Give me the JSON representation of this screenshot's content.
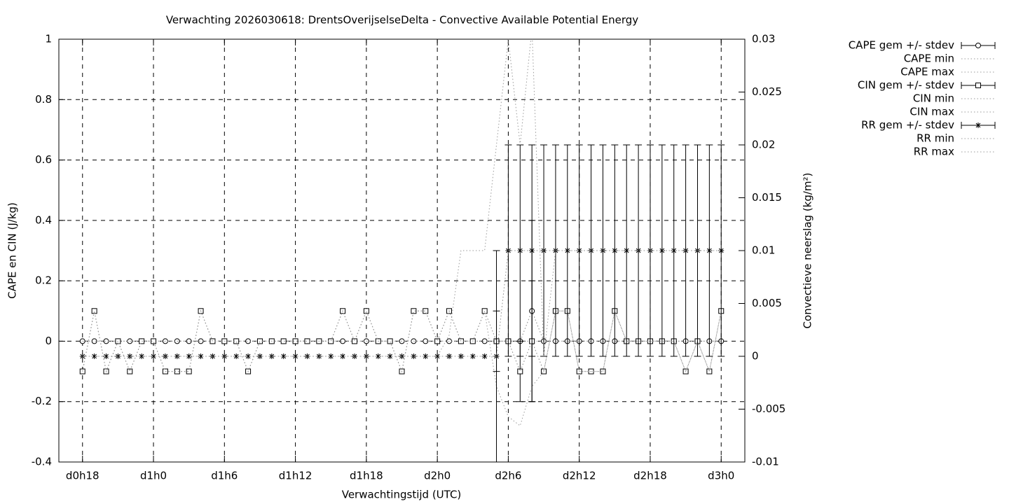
{
  "chart_data": {
    "type": "line",
    "title": "Verwachting 2026030618: DrentsOverijselseDelta - Convective Available Potential Energy",
    "xlabel": "Verwachtingstijd (UTC)",
    "ylabel": "CAPE en CIN (J/kg)",
    "y2label": "Convectieve neerslag (kg/m²)",
    "x": [
      0,
      1,
      2,
      3,
      4,
      5,
      6,
      7,
      8,
      9,
      10,
      11,
      12,
      13,
      14,
      15,
      16,
      17,
      18,
      19,
      20,
      21,
      22,
      23,
      24,
      25,
      26,
      27,
      28,
      29,
      30,
      31,
      32,
      33,
      34,
      35,
      36,
      37,
      38,
      39,
      40,
      41,
      42,
      43,
      44,
      45,
      46,
      47,
      48,
      49,
      50,
      51,
      52,
      53,
      54
    ],
    "xlim": [
      -2,
      56
    ],
    "xticks": [
      {
        "value": 0,
        "label": "d0h18"
      },
      {
        "value": 6,
        "label": "d1h0"
      },
      {
        "value": 12,
        "label": "d1h6"
      },
      {
        "value": 18,
        "label": "d1h12"
      },
      {
        "value": 24,
        "label": "d1h18"
      },
      {
        "value": 30,
        "label": "d2h0"
      },
      {
        "value": 36,
        "label": "d2h6"
      },
      {
        "value": 42,
        "label": "d2h12"
      },
      {
        "value": 48,
        "label": "d2h18"
      },
      {
        "value": 54,
        "label": "d3h0"
      }
    ],
    "ylim": [
      -0.4,
      1
    ],
    "yticks": [
      -0.4,
      -0.2,
      0,
      0.2,
      0.4,
      0.6,
      0.8,
      1
    ],
    "y2lim": [
      -0.01,
      0.03
    ],
    "y2ticks": [
      -0.01,
      -0.005,
      0,
      0.005,
      0.01,
      0.015,
      0.02,
      0.025,
      0.03
    ],
    "grid": true,
    "legend": "right",
    "series": [
      {
        "name": "CAPE gem +/- stdev",
        "color": "#000000",
        "marker": "circle",
        "style": "mean",
        "values": [
          0,
          0,
          0,
          0,
          0,
          0,
          0,
          0,
          0,
          0,
          0,
          0,
          0,
          0,
          0,
          0,
          0,
          0,
          0,
          0,
          0,
          0,
          0,
          0,
          0,
          0,
          0,
          0,
          0,
          0,
          0,
          0,
          0,
          0,
          0,
          0,
          0,
          0,
          0.1,
          0,
          0,
          0,
          0,
          0,
          0,
          0,
          0,
          0,
          0,
          0,
          0,
          0,
          0,
          0,
          0
        ],
        "errors": [
          0,
          0,
          0,
          0,
          0,
          0,
          0,
          0,
          0,
          0,
          0,
          0,
          0,
          0,
          0,
          0,
          0,
          0,
          0,
          0,
          0,
          0,
          0,
          0,
          0,
          0,
          0,
          0,
          0,
          0,
          0,
          0,
          0,
          0,
          0,
          0,
          0,
          0,
          0.3,
          0,
          0,
          0,
          0,
          0,
          0,
          0,
          0,
          0,
          0,
          0,
          0,
          0,
          0,
          0,
          0
        ]
      },
      {
        "name": "CAPE min",
        "color": "#999999",
        "style": "dotted",
        "values": [
          0,
          0,
          0,
          0,
          0,
          0,
          0,
          0,
          0,
          0,
          0,
          0,
          0,
          0,
          0,
          0,
          0,
          0,
          0,
          0,
          0,
          0,
          0,
          0,
          0,
          0,
          0,
          0,
          0,
          0,
          0,
          0,
          0,
          0,
          0,
          0,
          0,
          0,
          0,
          0,
          0,
          0,
          0,
          0,
          0,
          0,
          0,
          0,
          0,
          0,
          0,
          0,
          0,
          0,
          0
        ]
      },
      {
        "name": "CAPE max",
        "color": "#999999",
        "style": "dotted",
        "values": [
          0,
          0,
          0,
          0,
          0,
          0,
          0,
          0,
          0,
          0,
          0,
          0,
          0,
          0,
          0,
          0,
          0,
          0,
          0,
          0,
          0,
          0,
          0,
          0,
          0,
          0,
          0,
          0,
          0,
          0,
          0,
          0,
          0,
          0,
          0,
          0,
          0,
          0,
          0.1,
          0,
          0,
          0,
          0,
          0,
          0,
          0,
          0,
          0,
          0,
          0,
          0,
          0,
          0,
          0,
          0
        ]
      },
      {
        "name": "CIN gem +/- stdev",
        "color": "#000000",
        "marker": "square",
        "style": "mean",
        "values": [
          -0.1,
          0.1,
          -0.1,
          0,
          -0.1,
          0,
          0,
          -0.1,
          -0.1,
          -0.1,
          0.1,
          0,
          0,
          0,
          -0.1,
          0,
          0,
          0,
          0,
          0,
          0,
          0,
          0.1,
          0,
          0.1,
          0,
          0,
          -0.1,
          0.1,
          0.1,
          0,
          0.1,
          0,
          0,
          0.1,
          0,
          0,
          -0.1,
          0,
          -0.1,
          0.1,
          0.1,
          -0.1,
          -0.1,
          -0.1,
          0.1,
          0,
          0,
          0,
          0,
          0,
          -0.1,
          0,
          -0.1,
          0.1
        ],
        "errors": [
          0,
          0,
          0,
          0,
          0,
          0,
          0,
          0,
          0,
          0,
          0,
          0,
          0,
          0,
          0,
          0,
          0,
          0,
          0,
          0,
          0,
          0,
          0,
          0,
          0,
          0,
          0,
          0,
          0,
          0,
          0,
          0,
          0,
          0,
          0,
          0.1,
          0,
          0.1,
          0.2,
          0,
          0,
          0,
          0,
          0,
          0,
          0,
          0,
          0,
          0,
          0,
          0,
          0,
          0,
          0,
          0
        ]
      },
      {
        "name": "CIN min",
        "color": "#999999",
        "style": "dotted",
        "values": [
          -0.1,
          0.1,
          -0.1,
          0,
          -0.1,
          0,
          0,
          -0.1,
          -0.1,
          -0.1,
          0.1,
          0,
          0,
          0,
          -0.1,
          0,
          0,
          0,
          0,
          0,
          0,
          0,
          0.1,
          0,
          0.1,
          0,
          0,
          -0.1,
          0.1,
          0.1,
          0,
          0.1,
          0,
          0,
          0.1,
          -0.15,
          -0.25,
          -0.28,
          -0.15,
          -0.1,
          0.1,
          0.1,
          -0.1,
          -0.1,
          -0.1,
          0.1,
          0,
          0,
          0,
          0,
          0,
          -0.1,
          0,
          -0.1,
          0.1
        ]
      },
      {
        "name": "CIN max",
        "color": "#999999",
        "style": "dotted",
        "values": [
          -0.1,
          0.1,
          -0.1,
          0,
          -0.1,
          0,
          0,
          -0.1,
          -0.1,
          -0.1,
          0.1,
          0,
          0,
          0,
          -0.1,
          0,
          0,
          0,
          0,
          0,
          0,
          0,
          0.1,
          0,
          0.1,
          0,
          0,
          -0.1,
          0.1,
          0.1,
          0,
          0.1,
          0,
          0,
          0.1,
          0,
          0,
          -0.1,
          0,
          -0.1,
          0.1,
          0.1,
          -0.1,
          -0.1,
          -0.1,
          0.1,
          0,
          0,
          0,
          0,
          0,
          -0.1,
          0,
          -0.1,
          0.1
        ]
      },
      {
        "name": "RR gem +/- stdev",
        "color": "#000000",
        "marker": "star",
        "style": "mean",
        "axis": "y2",
        "values": [
          0,
          0,
          0,
          0,
          0,
          0,
          0,
          0,
          0,
          0,
          0,
          0,
          0,
          0,
          0,
          0,
          0,
          0,
          0,
          0,
          0,
          0,
          0,
          0,
          0,
          0,
          0,
          0,
          0,
          0,
          0,
          0,
          0,
          0,
          0,
          0,
          0.01,
          0.01,
          0.01,
          0.01,
          0.01,
          0.01,
          0.01,
          0.01,
          0.01,
          0.01,
          0.01,
          0.01,
          0.01,
          0.01,
          0.01,
          0.01,
          0.01,
          0.01,
          0.01
        ],
        "errors": [
          0,
          0,
          0,
          0,
          0,
          0,
          0,
          0,
          0,
          0,
          0,
          0,
          0,
          0,
          0,
          0,
          0,
          0,
          0,
          0,
          0,
          0,
          0,
          0,
          0,
          0,
          0,
          0,
          0,
          0,
          0,
          0,
          0,
          0,
          0,
          0.01,
          0.01,
          0.01,
          0.01,
          0.01,
          0.01,
          0.01,
          0.01,
          0.01,
          0.01,
          0.01,
          0.01,
          0.01,
          0.01,
          0.01,
          0.01,
          0.01,
          0.01,
          0.01,
          0.01
        ]
      },
      {
        "name": "RR min",
        "color": "#999999",
        "style": "dotted",
        "axis": "y2",
        "values": [
          0,
          0,
          0,
          0,
          0,
          0,
          0,
          0,
          0,
          0,
          0,
          0,
          0,
          0,
          0,
          0,
          0,
          0,
          0,
          0,
          0,
          0,
          0,
          0,
          0,
          0,
          0,
          0,
          0,
          0,
          0,
          0,
          0,
          0,
          0,
          0,
          0.01,
          0.01,
          0.01,
          0.01,
          0.01,
          0.01,
          0.01,
          0.01,
          0.01,
          0.01,
          0.01,
          0.01,
          0.01,
          0.01,
          0.01,
          0.01,
          0.01,
          0.01,
          0.01
        ]
      },
      {
        "name": "RR max",
        "color": "#999999",
        "style": "dotted",
        "axis": "y2",
        "values": [
          0,
          0,
          0,
          0,
          0,
          0,
          0,
          0,
          0,
          0,
          0,
          0,
          0,
          0,
          0,
          0,
          0,
          0,
          0,
          0,
          0,
          0,
          0,
          0,
          0,
          0,
          0,
          0,
          0,
          0,
          0,
          0.002,
          0.01,
          0.01,
          0.01,
          0.02,
          0.03,
          0.02,
          0.031,
          0,
          0.01,
          0.01,
          0.01,
          0.01,
          0.01,
          0.01,
          0.01,
          0.01,
          0.01,
          0.01,
          0.01,
          0.01,
          0.01,
          0.01,
          0.01
        ]
      }
    ]
  }
}
